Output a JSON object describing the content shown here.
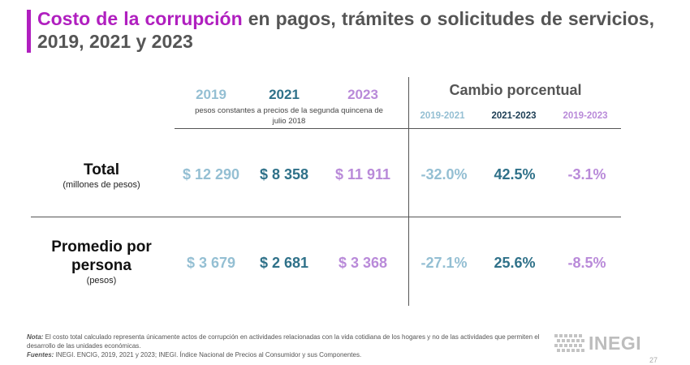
{
  "title": {
    "highlight": "Costo de la corrupción",
    "rest": " en pagos, trámites o solicitudes de servicios, 2019, 2021 y 2023"
  },
  "years": [
    "2019",
    "2021",
    "2023"
  ],
  "years_note": "pesos constantes a precios de la segunda quincena de julio 2018",
  "change_header": "Cambio porcentual",
  "periods": [
    "2019-2021",
    "2021-2023",
    "2019-2023"
  ],
  "rows": [
    {
      "label": "Total",
      "sublabel": "(millones de pesos)",
      "values": [
        "$ 12 290",
        "$ 8 358",
        "$ 11 911"
      ],
      "changes": [
        "-32.0%",
        "42.5%",
        "-3.1%"
      ]
    },
    {
      "label": "Promedio por persona",
      "sublabel": "(pesos)",
      "values": [
        "$ 3 679",
        "$ 2 681",
        "$ 3 368"
      ],
      "changes": [
        "-27.1%",
        "25.6%",
        "-8.5%"
      ]
    }
  ],
  "footer": {
    "note_label": "Nota:",
    "note_text": " El costo total calculado representa únicamente actos de corrupción en actividades relacionadas con la vida cotidiana de los hogares y no de las actividades que permiten el desarrollo de las unidades económicas.",
    "sources_label": "Fuentes:",
    "sources_text": " INEGI. ENCIG, 2019, 2021 y 2023; INEGI. Índice Nacional de Precios al Consumidor y sus Componentes."
  },
  "logo_text": "INEGI",
  "page_number": "27",
  "colors": {
    "accent": "#b01fbf",
    "year_2019": "#94bfd3",
    "year_2021": "#2f7189",
    "year_2023": "#b98ad9"
  }
}
